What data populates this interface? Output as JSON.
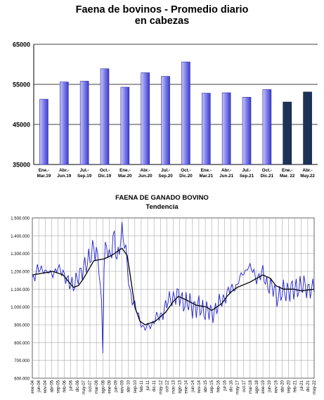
{
  "chart_data": [
    {
      "type": "bar",
      "title": "Faena de bovinos - Promedio diario",
      "subtitle": "en cabezas",
      "ylim": [
        35000,
        65000
      ],
      "yticks": [
        "35000",
        "45000",
        "55000",
        "65000"
      ],
      "grid": true,
      "categories": [
        [
          "Ene.-",
          "Mar.19"
        ],
        [
          "Abr.-",
          "Jun.19"
        ],
        [
          "Jul.-",
          "Sep.19"
        ],
        [
          "Oct.-",
          "Dic.19"
        ],
        [
          "Ene.-",
          "Mar.20"
        ],
        [
          "Abr.-",
          "Jun.20"
        ],
        [
          "Jul.-",
          "Sep.20"
        ],
        [
          "Oct.-",
          "Dic.20"
        ],
        [
          "Ene.-",
          "Mar.21"
        ],
        [
          "Abr.-",
          "Jun.21"
        ],
        [
          "Jul.-",
          "Sep.21"
        ],
        [
          "Oct.-",
          "Dic.21"
        ],
        [
          "Ene.-",
          "Mar. 22"
        ],
        [
          "Abr.-",
          "May.22"
        ]
      ],
      "values": [
        51300,
        55600,
        55800,
        58900,
        54300,
        57900,
        57000,
        60600,
        52800,
        52900,
        51800,
        53700,
        50600,
        53100
      ],
      "colors": {
        "bar_light": "#c9c9f7",
        "bar_mid": "#7777ea",
        "bar_dark": "#3c3cc8",
        "bar_dark_fill": "#1c3357",
        "highlight_last_n": 2
      }
    },
    {
      "type": "line",
      "title": "FAENA DE GANADO BOVINO",
      "subtitle": "Tendencia",
      "ylim": [
        600000,
        1500000
      ],
      "yticks": [
        "600.000",
        "700.000",
        "800.000",
        "900.000",
        "1.000.000",
        "1.100.000",
        "1.200.000",
        "1.300.000",
        "1.400.000",
        "1.500.000"
      ],
      "grid": true,
      "xticks": [
        "ene-04",
        "jun-04",
        "nov-04",
        "abr-05",
        "sep-05",
        "feb-06",
        "jul-06",
        "dic-06",
        "may-07",
        "oct-07",
        "mar-08",
        "ago-08",
        "ene-09",
        "jun-09",
        "nov-09",
        "abr-10",
        "sep-10",
        "feb-11",
        "jul-11",
        "dic-11",
        "may-12",
        "oct-12",
        "mar-13",
        "ago-13",
        "ene-14",
        "jun-14",
        "nov-14",
        "abr-15",
        "sep-15",
        "feb-16",
        "jul-16",
        "dic-16",
        "may-17",
        "oct-17",
        "mar-18",
        "ago-18",
        "ene-19",
        "jun-19",
        "nov-19",
        "abr-20",
        "sep-20",
        "feb-21",
        "jul-21",
        "dic-21",
        "may-22"
      ],
      "series": [
        {
          "color": "#1f1fd0",
          "anchors": [
            [
              0,
              1130000
            ],
            [
              4,
              1230000
            ],
            [
              8,
              1190000
            ],
            [
              12,
              1215000
            ],
            [
              16,
              1165000
            ],
            [
              20,
              1240000
            ],
            [
              24,
              1170000
            ],
            [
              28,
              1160000
            ],
            [
              32,
              1100000
            ],
            [
              36,
              1190000
            ],
            [
              40,
              1200000
            ],
            [
              44,
              1280000
            ],
            [
              48,
              1320000
            ],
            [
              52,
              1260000
            ],
            [
              55,
              850000
            ],
            [
              56,
              1220000
            ],
            [
              58,
              1360000
            ],
            [
              60,
              1280000
            ],
            [
              64,
              1390000
            ],
            [
              66,
              1250000
            ],
            [
              70,
              1440000
            ],
            [
              73,
              1300000
            ],
            [
              76,
              1100000
            ],
            [
              80,
              1000000
            ],
            [
              84,
              930000
            ],
            [
              88,
              870000
            ],
            [
              92,
              900000
            ],
            [
              96,
              930000
            ],
            [
              100,
              950000
            ],
            [
              104,
              1000000
            ],
            [
              108,
              1050000
            ],
            [
              112,
              1060000
            ],
            [
              116,
              1050000
            ],
            [
              120,
              1020000
            ],
            [
              124,
              1010000
            ],
            [
              128,
              1000000
            ],
            [
              132,
              990000
            ],
            [
              136,
              980000
            ],
            [
              140,
              960000
            ],
            [
              144,
              1000000
            ],
            [
              148,
              1030000
            ],
            [
              152,
              1080000
            ],
            [
              156,
              1100000
            ],
            [
              160,
              1130000
            ],
            [
              164,
              1180000
            ],
            [
              168,
              1230000
            ],
            [
              172,
              1200000
            ],
            [
              176,
              1160000
            ],
            [
              180,
              1190000
            ],
            [
              184,
              1120000
            ],
            [
              188,
              1100000
            ],
            [
              192,
              1060000
            ],
            [
              196,
              1080000
            ],
            [
              200,
              1100000
            ],
            [
              204,
              1090000
            ],
            [
              208,
              1120000
            ],
            [
              220,
              1100000
            ]
          ]
        },
        {
          "color": "#000000",
          "anchors": [
            [
              0,
              1180000
            ],
            [
              8,
              1190000
            ],
            [
              16,
              1200000
            ],
            [
              24,
              1180000
            ],
            [
              32,
              1110000
            ],
            [
              36,
              1120000
            ],
            [
              40,
              1160000
            ],
            [
              44,
              1210000
            ],
            [
              48,
              1260000
            ],
            [
              56,
              1270000
            ],
            [
              62,
              1290000
            ],
            [
              66,
              1310000
            ],
            [
              70,
              1330000
            ],
            [
              74,
              1290000
            ],
            [
              76,
              1200000
            ],
            [
              80,
              1000000
            ],
            [
              84,
              920000
            ],
            [
              88,
              900000
            ],
            [
              96,
              920000
            ],
            [
              104,
              970000
            ],
            [
              110,
              1030000
            ],
            [
              114,
              1060000
            ],
            [
              120,
              1040000
            ],
            [
              128,
              1010000
            ],
            [
              136,
              1000000
            ],
            [
              140,
              980000
            ],
            [
              148,
              1020000
            ],
            [
              152,
              1060000
            ],
            [
              156,
              1090000
            ],
            [
              160,
              1110000
            ],
            [
              170,
              1140000
            ],
            [
              180,
              1180000
            ],
            [
              186,
              1160000
            ],
            [
              190,
              1120000
            ],
            [
              196,
              1100000
            ],
            [
              204,
              1100000
            ],
            [
              210,
              1090000
            ],
            [
              220,
              1100000
            ]
          ]
        }
      ]
    }
  ]
}
